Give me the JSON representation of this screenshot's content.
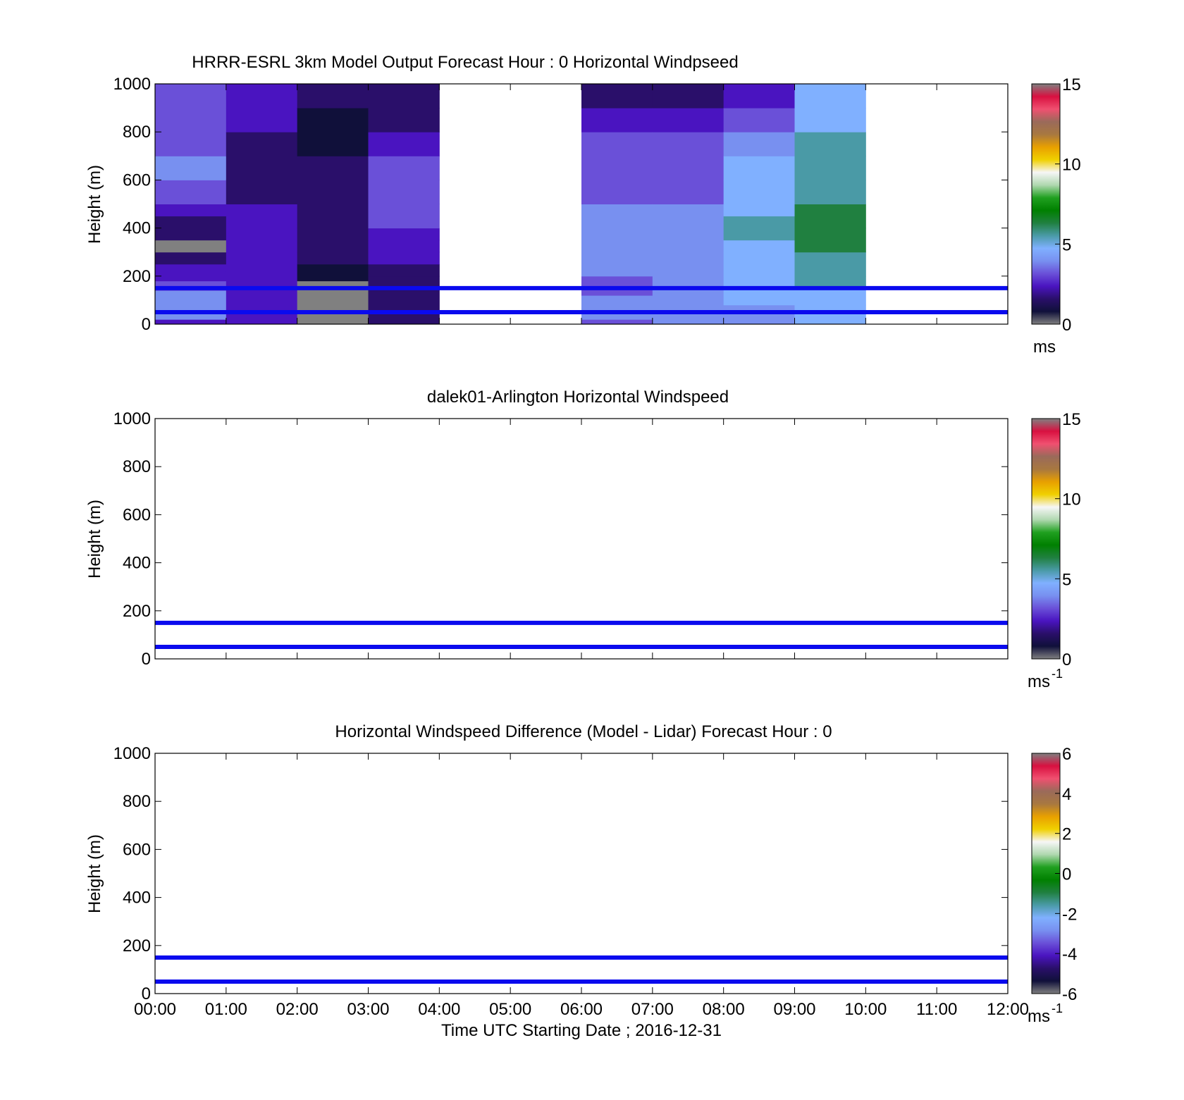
{
  "colors": {
    "line": "#0a0aee",
    "nodata": "#808080",
    "axis": "#000000",
    "colormap": [
      "#808080",
      "#10103a",
      "#2a0f6a",
      "#4a14c0",
      "#6a50d8",
      "#7890f0",
      "#80b0ff",
      "#4a9aa6",
      "#208040",
      "#008000",
      "#20a020",
      "#b0d8b0",
      "#f6f6f6",
      "#f0d000",
      "#e8a000",
      "#a87840",
      "#9a6a5a",
      "#f05070",
      "#d81040",
      "#808080"
    ]
  },
  "chart_data": [
    {
      "type": "heatmap",
      "title": "HRRR-ESRL 3km Model Output   Forecast Hour : 0 Horizontal Windpseed",
      "ylabel": "Height (m)",
      "xlabel": "",
      "xlim": [
        0,
        12
      ],
      "ylim": [
        0,
        1000
      ],
      "xticks": [
        0,
        1,
        2,
        3,
        4,
        5,
        6,
        7,
        8,
        9,
        10,
        11,
        12
      ],
      "xtick_labels": [],
      "yticks": [
        0,
        200,
        400,
        600,
        800,
        1000
      ],
      "ytick_labels": [
        "0",
        "200",
        "400",
        "600",
        "800",
        "1000"
      ],
      "colorbar": {
        "clim": [
          0,
          15
        ],
        "ticks": [
          0,
          5,
          10,
          15
        ],
        "tick_labels": [
          "0",
          "5",
          "10",
          "15"
        ],
        "unit": "ms",
        "unit_sup": ""
      },
      "hlines": [
        50,
        150
      ],
      "columns": [
        {
          "x": 0,
          "cells": [
            [
              0,
              20,
              2.2
            ],
            [
              20,
              40,
              3.8
            ],
            [
              40,
              80,
              3.2
            ],
            [
              80,
              120,
              3.8
            ],
            [
              120,
              140,
              3.5
            ],
            [
              140,
              160,
              2.8
            ],
            [
              160,
              180,
              2.5
            ],
            [
              180,
              220,
              1.8
            ],
            [
              220,
              250,
              1.6
            ],
            [
              250,
              280,
              1.0
            ],
            [
              280,
              300,
              0.7
            ],
            [
              300,
              350,
              -1
            ],
            [
              350,
              400,
              0.5
            ],
            [
              400,
              450,
              1.2
            ],
            [
              450,
              500,
              2.0
            ],
            [
              500,
              550,
              2.4
            ],
            [
              550,
              600,
              2.5
            ],
            [
              600,
              700,
              3.1
            ],
            [
              700,
              800,
              2.9
            ],
            [
              800,
              900,
              2.7
            ],
            [
              900,
              1000,
              2.4
            ]
          ]
        },
        {
          "x": 1,
          "cells": [
            [
              0,
              50,
              2.0
            ],
            [
              50,
              400,
              1.9
            ],
            [
              400,
              500,
              1.4
            ],
            [
              500,
              600,
              1.0
            ],
            [
              600,
              700,
              0.9
            ],
            [
              700,
              800,
              1.0
            ],
            [
              800,
              900,
              1.5
            ],
            [
              900,
              1000,
              1.9
            ]
          ]
        },
        {
          "x": 2,
          "cells": [
            [
              0,
              50,
              -1
            ],
            [
              50,
              180,
              -1
            ],
            [
              180,
              250,
              0.2
            ],
            [
              250,
              300,
              1.0
            ],
            [
              300,
              400,
              1.3
            ],
            [
              400,
              500,
              1.2
            ],
            [
              500,
              600,
              1.1
            ],
            [
              600,
              700,
              0.8
            ],
            [
              700,
              900,
              0.2
            ],
            [
              900,
              1000,
              0.6
            ]
          ]
        },
        {
          "x": 3,
          "cells": [
            [
              0,
              50,
              1.0
            ],
            [
              50,
              200,
              1.1
            ],
            [
              200,
              250,
              1.3
            ],
            [
              250,
              300,
              1.6
            ],
            [
              300,
              350,
              2.0
            ],
            [
              350,
              400,
              2.2
            ],
            [
              400,
              500,
              2.4
            ],
            [
              500,
              600,
              2.5
            ],
            [
              600,
              700,
              2.3
            ],
            [
              700,
              800,
              1.8
            ],
            [
              800,
              900,
              1.0
            ],
            [
              900,
              1000,
              0.5
            ]
          ]
        },
        {
          "x": 6,
          "cells": [
            [
              0,
              20,
              3.0
            ],
            [
              20,
              120,
              3.1
            ],
            [
              120,
              200,
              2.8
            ],
            [
              200,
              300,
              3.1
            ],
            [
              300,
              350,
              3.4
            ],
            [
              350,
              400,
              3.8
            ],
            [
              400,
              500,
              3.2
            ],
            [
              500,
              700,
              3.0
            ],
            [
              700,
              800,
              2.4
            ],
            [
              800,
              900,
              1.9
            ],
            [
              900,
              1000,
              0.6
            ]
          ]
        },
        {
          "x": 7,
          "cells": [
            [
              0,
              100,
              3.4
            ],
            [
              100,
              300,
              3.2
            ],
            [
              300,
              500,
              3.8
            ],
            [
              500,
              700,
              3.0
            ],
            [
              700,
              800,
              2.4
            ],
            [
              800,
              900,
              1.9
            ],
            [
              900,
              1000,
              1.0
            ]
          ]
        },
        {
          "x": 8,
          "cells": [
            [
              0,
              80,
              3.5
            ],
            [
              80,
              150,
              4.3
            ],
            [
              150,
              200,
              4.2
            ],
            [
              200,
              250,
              4.5
            ],
            [
              250,
              300,
              4.5
            ],
            [
              300,
              350,
              4.6
            ],
            [
              350,
              400,
              4.9
            ],
            [
              400,
              450,
              5.1
            ],
            [
              450,
              500,
              4.7
            ],
            [
              500,
              600,
              4.6
            ],
            [
              600,
              700,
              4.3
            ],
            [
              700,
              800,
              3.2
            ],
            [
              800,
              900,
              2.9
            ],
            [
              900,
              1000,
              2.1
            ]
          ]
        },
        {
          "x": 9,
          "cells": [
            [
              0,
              50,
              4.0
            ],
            [
              50,
              80,
              4.4
            ],
            [
              80,
              150,
              4.7
            ],
            [
              150,
              200,
              5.1
            ],
            [
              200,
              300,
              5.6
            ],
            [
              300,
              400,
              5.9
            ],
            [
              400,
              500,
              5.9
            ],
            [
              500,
              600,
              5.6
            ],
            [
              600,
              700,
              5.4
            ],
            [
              700,
              800,
              5.0
            ],
            [
              800,
              900,
              4.5
            ],
            [
              900,
              1000,
              4.3
            ]
          ]
        }
      ]
    },
    {
      "type": "heatmap",
      "title": "dalek01-Arlington  Horizontal Windspeed",
      "ylabel": "Height (m)",
      "xlabel": "",
      "xlim": [
        0,
        12
      ],
      "ylim": [
        0,
        1000
      ],
      "xticks": [
        0,
        1,
        2,
        3,
        4,
        5,
        6,
        7,
        8,
        9,
        10,
        11,
        12
      ],
      "xtick_labels": [],
      "yticks": [
        0,
        200,
        400,
        600,
        800,
        1000
      ],
      "ytick_labels": [
        "0",
        "200",
        "400",
        "600",
        "800",
        "1000"
      ],
      "colorbar": {
        "clim": [
          0,
          15
        ],
        "ticks": [
          0,
          5,
          10,
          15
        ],
        "tick_labels": [
          "0",
          "5",
          "10",
          "15"
        ],
        "unit": "ms",
        "unit_sup": "-1"
      },
      "hlines": [
        50,
        150
      ],
      "columns": []
    },
    {
      "type": "heatmap",
      "title": "Horizontal Windspeed Difference (Model - Lidar) Forecast Hour : 0",
      "ylabel": "Height (m)",
      "xlabel": "Time UTC  Starting Date ; 2016-12-31",
      "xlim": [
        0,
        12
      ],
      "ylim": [
        0,
        1000
      ],
      "xticks": [
        0,
        1,
        2,
        3,
        4,
        5,
        6,
        7,
        8,
        9,
        10,
        11,
        12
      ],
      "xtick_labels": [
        "00:00",
        "01:00",
        "02:00",
        "03:00",
        "04:00",
        "05:00",
        "06:00",
        "07:00",
        "08:00",
        "09:00",
        "10:00",
        "11:00",
        "12:00"
      ],
      "yticks": [
        0,
        200,
        400,
        600,
        800,
        1000
      ],
      "ytick_labels": [
        "0",
        "200",
        "400",
        "600",
        "800",
        "1000"
      ],
      "colorbar": {
        "clim": [
          -6,
          6
        ],
        "ticks": [
          -6,
          -4,
          -2,
          0,
          2,
          4,
          6
        ],
        "tick_labels": [
          "-6",
          "-4",
          "-2",
          "0",
          "2",
          "4",
          "6"
        ],
        "unit": "ms",
        "unit_sup": "-1"
      },
      "hlines": [
        50,
        150
      ],
      "columns": []
    }
  ]
}
